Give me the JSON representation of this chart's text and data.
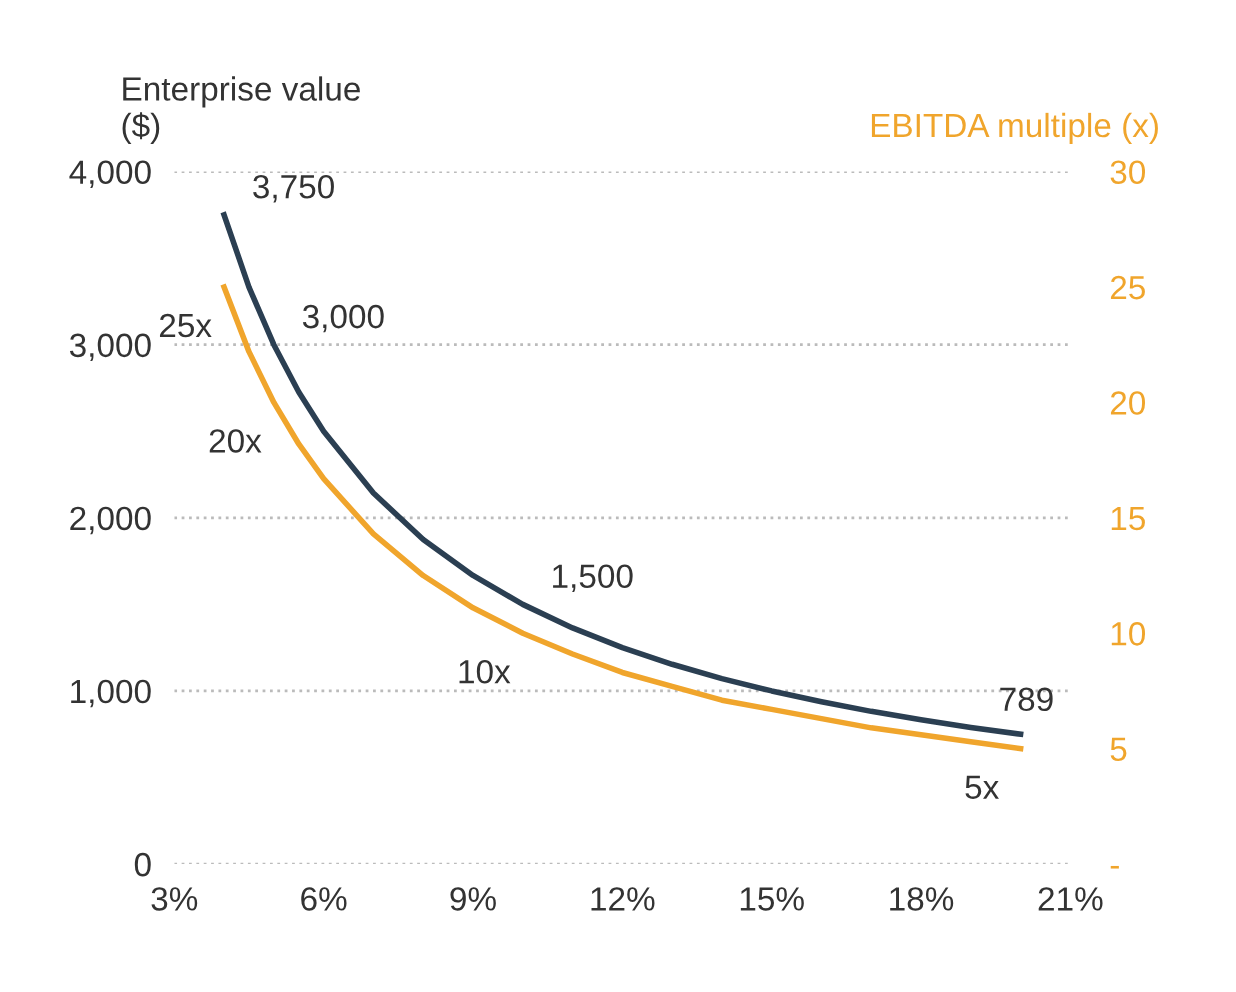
{
  "chart_data": {
    "type": "line",
    "x": [
      4,
      4.5,
      5,
      5.5,
      6,
      7,
      8,
      9,
      10,
      11,
      12,
      13,
      14,
      15,
      16,
      17,
      18,
      19,
      20
    ],
    "series": [
      {
        "color": "#2b3f52",
        "values": [
          3750,
          3333,
          3000,
          2727,
          2500,
          2143,
          1875,
          1667,
          1500,
          1364,
          1250,
          1154,
          1071,
          1000,
          938,
          882,
          833,
          789,
          750
        ],
        "value_labels": [
          "3,750",
          null,
          "3,000",
          null,
          null,
          null,
          null,
          null,
          "1,500",
          null,
          null,
          null,
          null,
          null,
          null,
          null,
          null,
          "789",
          null
        ]
      },
      {
        "color": "#f0a52c",
        "axis": "y2",
        "values": [
          25,
          22.2,
          20,
          18.2,
          16.7,
          14.3,
          12.5,
          11.1,
          10,
          9.1,
          8.3,
          7.7,
          7.1,
          6.7,
          6.3,
          5.9,
          5.6,
          5.3,
          5
        ],
        "value_labels": [
          "25x",
          null,
          "20x",
          null,
          null,
          null,
          null,
          null,
          "10x",
          null,
          null,
          null,
          null,
          null,
          null,
          null,
          null,
          null,
          "5x"
        ]
      }
    ],
    "ylabel": "Enterprise value ($)",
    "y2label": "EBITDA multiple (x)",
    "xlim": [
      3,
      21
    ],
    "xticks": [
      {
        "value": 3,
        "label": "3%"
      },
      {
        "value": 6,
        "label": "6%"
      },
      {
        "value": 9,
        "label": "9%"
      },
      {
        "value": 12,
        "label": "12%"
      },
      {
        "value": 15,
        "label": "15%"
      },
      {
        "value": 18,
        "label": "18%"
      },
      {
        "value": 21,
        "label": "21%"
      }
    ],
    "ylim": [
      0,
      4000
    ],
    "yticks": [
      0,
      {
        "value": 1000,
        "label": "1,000"
      },
      {
        "value": 2000,
        "label": "2,000"
      },
      {
        "value": 3000,
        "label": "3,000"
      },
      {
        "value": 4000,
        "label": "4,000"
      }
    ],
    "y2lim": [
      0,
      30
    ],
    "y2ticks": [
      {
        "value": 0,
        "label": "-"
      },
      5,
      10,
      15,
      20,
      25,
      30
    ],
    "grid": "y",
    "legend": false,
    "marker": "none",
    "line_style": "solid"
  }
}
